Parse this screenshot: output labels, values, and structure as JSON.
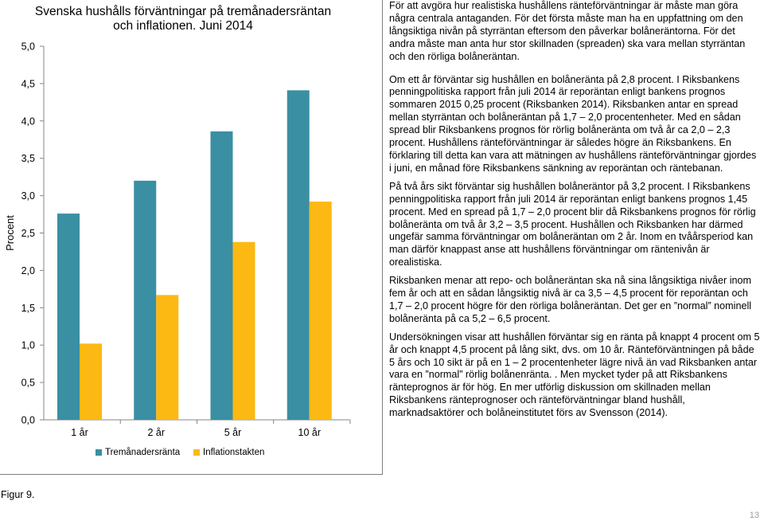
{
  "chart_data": {
    "type": "bar",
    "title": "Svenska hushålls förväntningar på tremånadersräntan och inflationen. Juni 2014",
    "ylabel": "Procent",
    "xlabel": "",
    "categories": [
      "1 år",
      "2 år",
      "5 år",
      "10 år"
    ],
    "series": [
      {
        "name": "Tremånadersränta",
        "color": "#3a8fa3",
        "values": [
          2.76,
          3.2,
          3.86,
          4.41
        ]
      },
      {
        "name": "Inflationstakten",
        "color": "#fcb813",
        "values": [
          1.02,
          1.67,
          2.38,
          2.92
        ]
      }
    ],
    "ylim": [
      0,
      5
    ],
    "yticks": [
      "0,0",
      "0,5",
      "1,0",
      "1,5",
      "2,0",
      "2,5",
      "3,0",
      "3,5",
      "4,0",
      "4,5",
      "5,0"
    ],
    "grid": false,
    "legend": "bottom"
  },
  "paragraphs": [
    "För att avgöra hur realistiska hushållens ränteförväntningar är måste man göra några centrala antaganden. För det första måste man ha en uppfattning om den långsiktiga nivån på styrräntan eftersom den påverkar bolåneräntorna. För det andra måste man anta hur stor skillnaden (spreaden) ska vara mellan styrräntan och den rörliga bolåneräntan.",
    "Om ett år förväntar sig hushållen en bolåneränta på 2,8 procent. I Riksbankens penningpolitiska rapport från juli 2014 är reporäntan enligt bankens prognos sommaren 2015 0,25 procent (Riksbanken 2014). Riksbanken antar en spread mellan styrräntan och bolåneräntan på 1,7 – 2,0 procentenheter. Med en sådan spread blir Riksbankens prognos för rörlig bolåneränta om två år ca 2,0 – 2,3 procent. Hushållens ränteförväntningar är således högre än Riksbankens. En förklaring till detta kan vara att mätningen av hushållens ränteförväntningar gjordes i juni, en månad före Riksbankens sänkning av reporäntan och räntebanan.",
    "På två års sikt förväntar sig hushållen bolåneräntor på 3,2 procent. I Riksbankens penningpolitiska rapport från juli 2014 är reporäntan enligt bankens prognos 1,45 procent. Med en spread på 1,7 – 2,0 procent blir då Riksbankens prognos för rörlig bolåneränta om två år 3,2 – 3,5 procent. Hushållen och Riksbanken har därmed ungefär samma förväntningar om bolåneräntan om 2 år. Inom en tvåårsperiod kan man därför knappast anse att hushållens förväntningar om räntenivån är orealistiska.",
    "Riksbanken menar att repo- och bolåneräntan ska nå sina långsiktiga nivåer inom fem år och att en sådan långsiktig nivå är ca 3,5 – 4,5 procent för reporäntan och 1,7 – 2,0 procent högre för den rörliga bolåneräntan. Det ger en ”normal” nominell bolåneränta på ca 5,2 – 6,5 procent.",
    "Undersökningen visar att hushållen förväntar sig en ränta på knappt 4 procent om 5 år och knappt 4,5 procent på lång sikt, dvs. om 10 år. Ränteförväntningen på både 5 års och 10 sikt är på en 1 – 2 procentenheter lägre nivå än vad Riksbanken antar vara en ”normal” rörlig bolånenränta. . Men mycket tyder på att Riksbankens ränteprognos är för hög. En mer utförlig diskussion om skillnaden mellan Riksbankens ränteprognoser och ränteförväntningar bland hushåll, marknadsaktörer och bolåneinstitutet förs av Svensson (2014)."
  ],
  "figure_caption": "Figur 9.",
  "page_number": "13"
}
